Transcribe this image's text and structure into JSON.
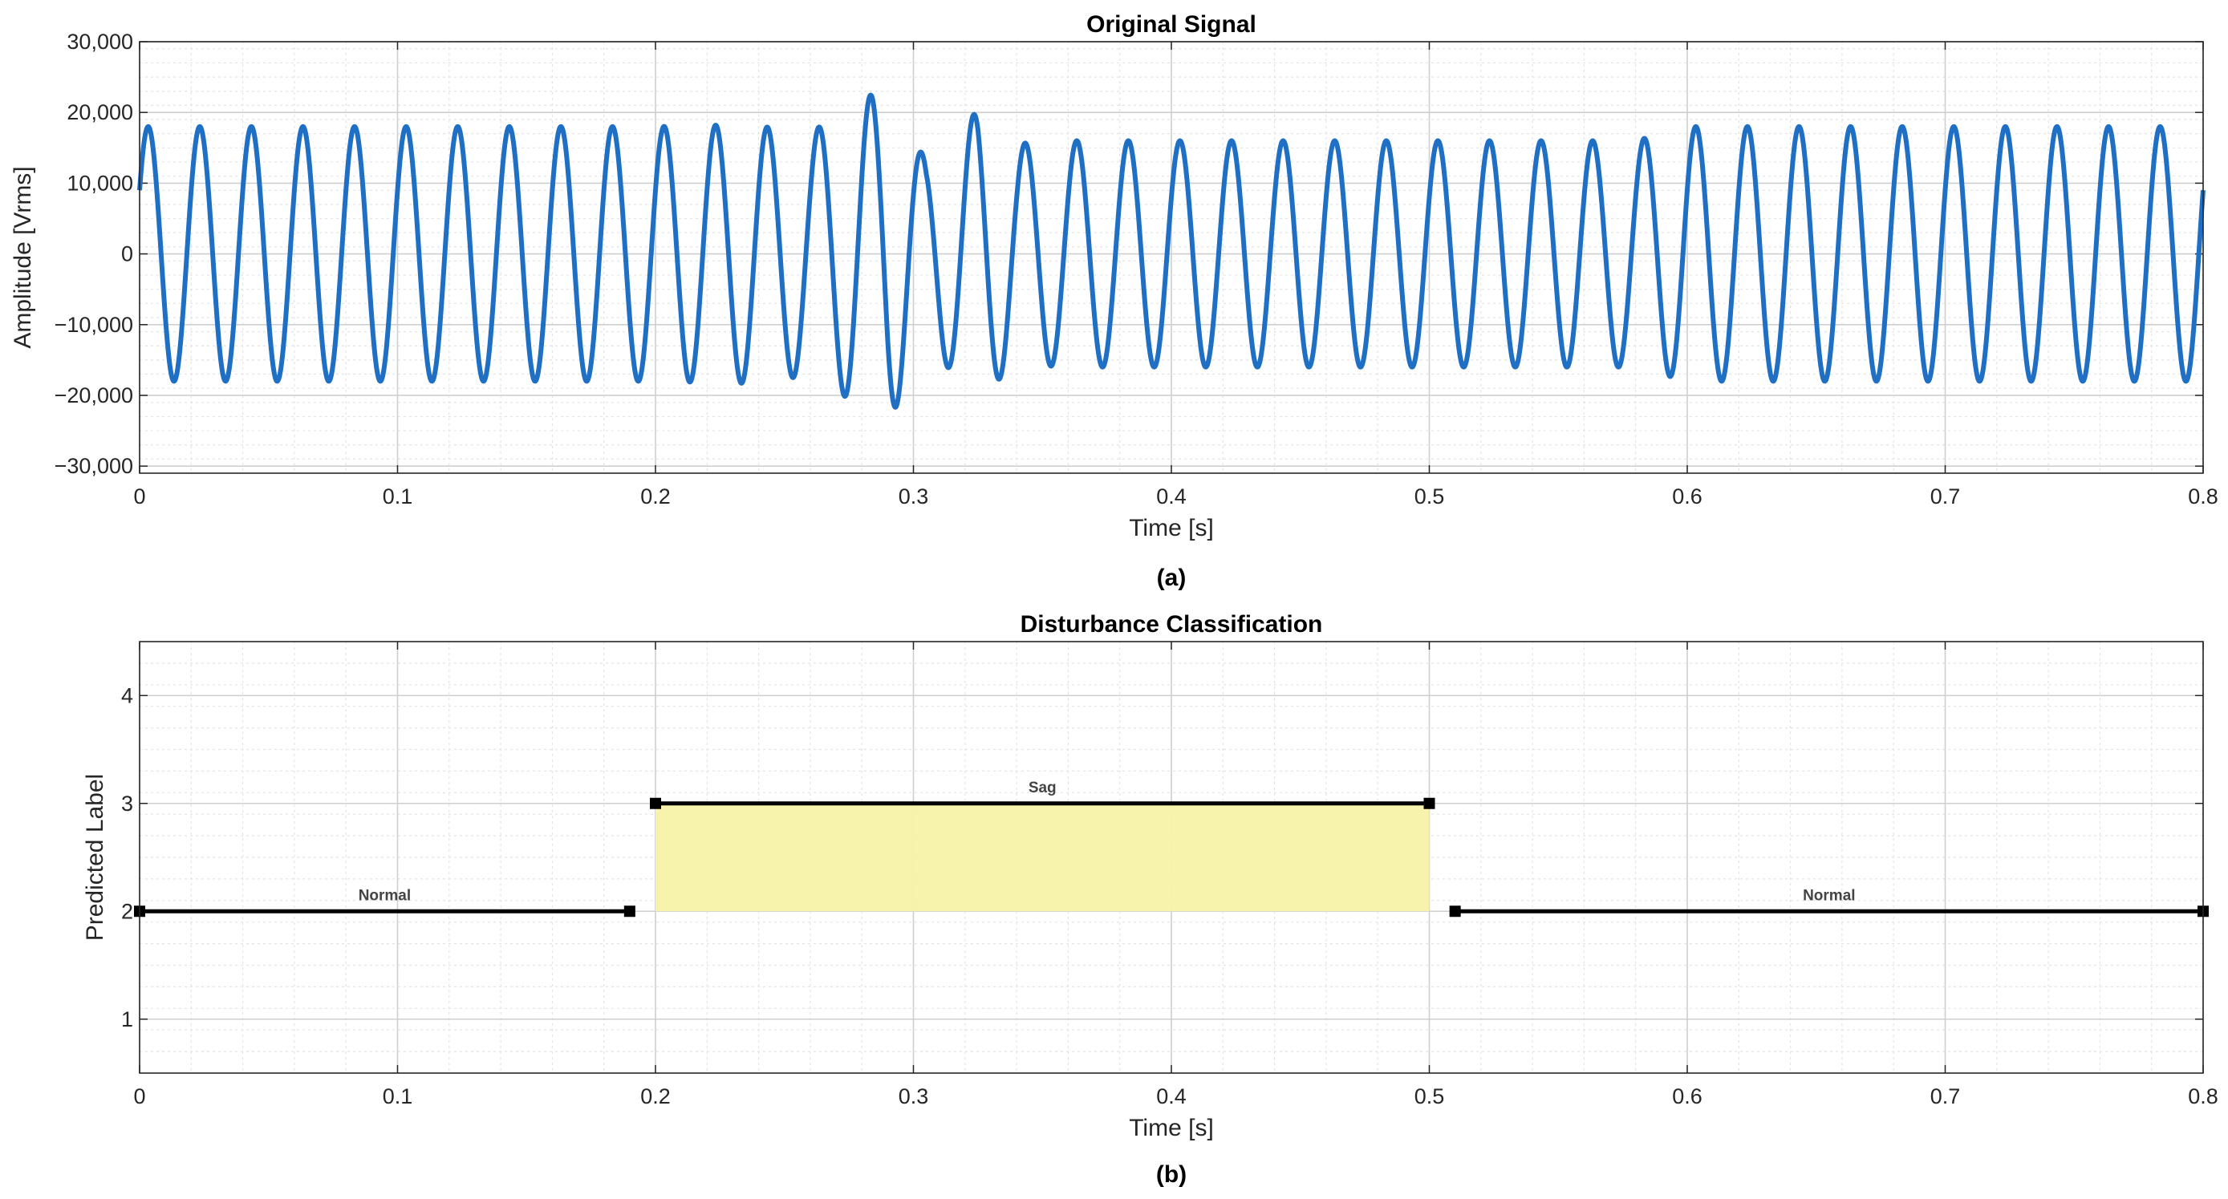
{
  "chart_data": [
    {
      "type": "line",
      "title": "Original Signal",
      "xlabel": "Time [s]",
      "ylabel": "Amplitude [Vrms]",
      "caption": "(a)",
      "xlim": [
        0,
        0.8
      ],
      "ylim": [
        -31000,
        30000
      ],
      "xticks": [
        0,
        0.1,
        0.2,
        0.3,
        0.4,
        0.5,
        0.6,
        0.7,
        0.8
      ],
      "xtick_labels": [
        "0",
        "0.1",
        "0.2",
        "0.3",
        "0.4",
        "0.5",
        "0.6",
        "0.7",
        "0.8"
      ],
      "yticks": [
        -30000,
        -20000,
        -10000,
        0,
        10000,
        20000,
        30000
      ],
      "ytick_labels": [
        "−30,000",
        "−20,000",
        "−10,000",
        "0",
        "10,000",
        "20,000",
        "30,000"
      ],
      "grid": true,
      "minor_grid": true,
      "line_color": "#1f6fc5",
      "series": [
        {
          "frequency_hz": 50,
          "phase_deg": 30,
          "envelope_t": [
            0,
            0.2,
            0.235,
            0.26,
            0.275,
            0.29,
            0.305,
            0.325,
            0.34,
            0.36,
            0.58,
            0.6,
            0.8
          ],
          "envelope_amplitude": [
            18000,
            18000,
            18300,
            17200,
            20500,
            24000,
            13000,
            20300,
            15600,
            16000,
            16000,
            18000,
            18000
          ]
        }
      ]
    },
    {
      "type": "line",
      "title": "Disturbance Classification",
      "xlabel": "Time [s]",
      "ylabel": "Predicted Label",
      "caption": "(b)",
      "xlim": [
        0,
        0.8
      ],
      "ylim": [
        0.5,
        4.5
      ],
      "xticks": [
        0,
        0.1,
        0.2,
        0.3,
        0.4,
        0.5,
        0.6,
        0.7,
        0.8
      ],
      "xtick_labels": [
        "0",
        "0.1",
        "0.2",
        "0.3",
        "0.4",
        "0.5",
        "0.6",
        "0.7",
        "0.8"
      ],
      "yticks": [
        1,
        2,
        3,
        4
      ],
      "ytick_labels": [
        "1",
        "2",
        "3",
        "4"
      ],
      "grid": true,
      "minor_grid": true,
      "line_color": "#000000",
      "highlight_color": "#f7f2a9",
      "highlight": {
        "x": [
          0.2,
          0.5
        ],
        "y": [
          2,
          3
        ]
      },
      "segments": [
        {
          "label": "Normal",
          "x": [
            0,
            0.19
          ],
          "y": 2
        },
        {
          "label": "Sag",
          "x": [
            0.2,
            0.5
          ],
          "y": 3
        },
        {
          "label": "Normal",
          "x": [
            0.51,
            0.8
          ],
          "y": 2
        }
      ]
    }
  ]
}
